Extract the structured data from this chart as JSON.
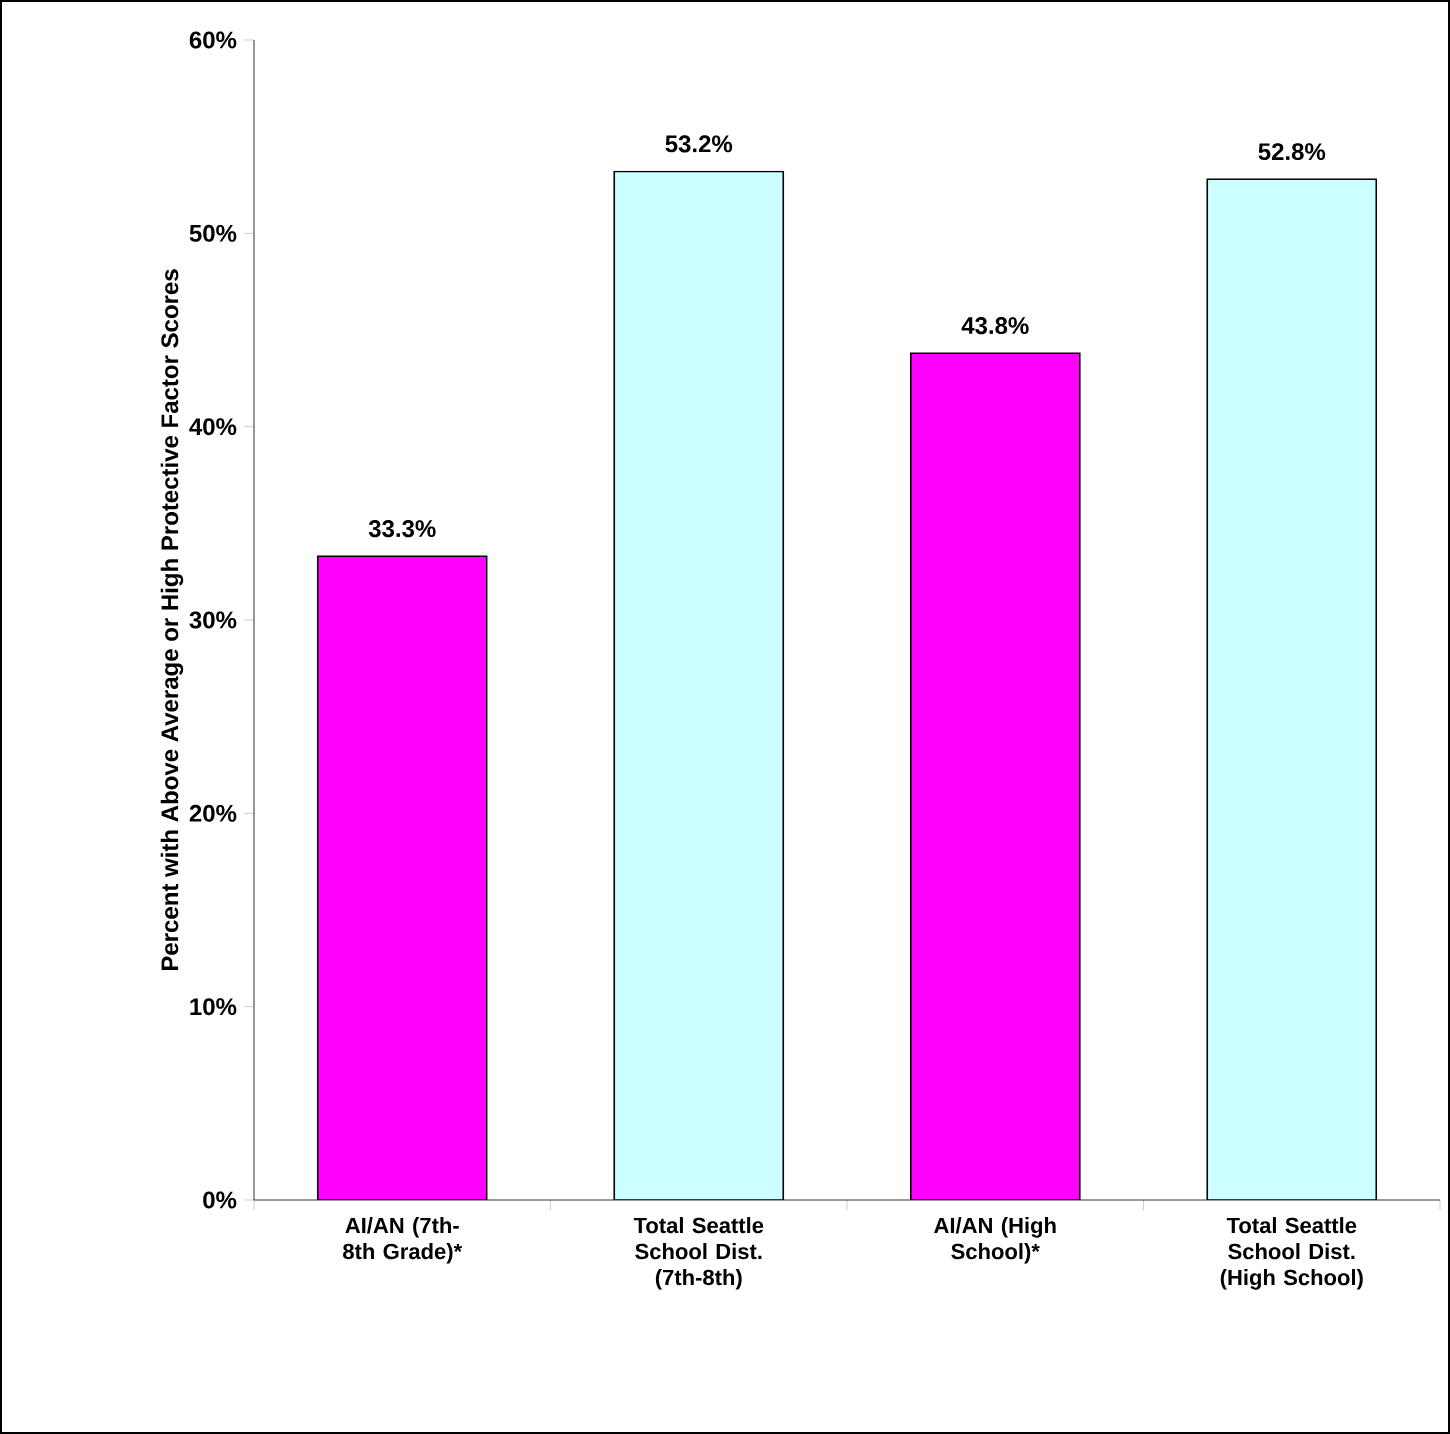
{
  "chart_data": {
    "type": "bar",
    "ylabel": "Percent with Above Average or High  Protective Factor Scores",
    "categories": [
      "AI/AN (7th-8th Grade)*",
      "Total Seattle School Dist. (7th-8th)",
      "AI/AN (High School)*",
      "Total Seattle School Dist. (High School)"
    ],
    "values": [
      33.3,
      53.2,
      43.8,
      52.8
    ],
    "colors": [
      "#ff00ff",
      "#ccffff",
      "#ff00ff",
      "#ccffff"
    ],
    "value_labels": [
      "33.3%",
      "53.2%",
      "43.8%",
      "52.8%"
    ],
    "ylim": [
      0,
      60
    ],
    "yticks": [
      {
        "value": 0,
        "label": "0%"
      },
      {
        "value": 10,
        "label": "10%"
      },
      {
        "value": 20,
        "label": "20%"
      },
      {
        "value": 30,
        "label": "30%"
      },
      {
        "value": 40,
        "label": "40%"
      },
      {
        "value": 50,
        "label": "50%"
      },
      {
        "value": 60,
        "label": "60%"
      }
    ],
    "grid": false
  }
}
